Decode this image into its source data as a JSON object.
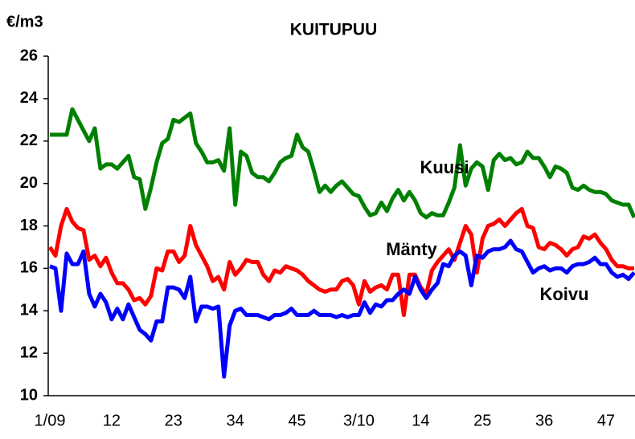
{
  "chart_data": {
    "type": "line",
    "title": "KUITUPUU",
    "y_label": "€/m3",
    "annotations": [
      "Kuusi",
      "Mänty",
      "Koivu"
    ],
    "categories": [
      "1/09",
      null,
      null,
      null,
      null,
      null,
      null,
      null,
      null,
      null,
      null,
      "12",
      null,
      null,
      null,
      null,
      null,
      null,
      null,
      null,
      null,
      null,
      "23",
      null,
      null,
      null,
      null,
      null,
      null,
      null,
      null,
      null,
      null,
      "34",
      null,
      null,
      null,
      null,
      null,
      null,
      null,
      null,
      null,
      null,
      "45",
      null,
      null,
      null,
      null,
      null,
      null,
      null,
      null,
      null,
      null,
      "3/10",
      null,
      null,
      null,
      null,
      null,
      null,
      null,
      null,
      null,
      null,
      "14",
      null,
      null,
      null,
      null,
      null,
      null,
      null,
      null,
      null,
      null,
      "25",
      null,
      null,
      null,
      null,
      null,
      null,
      null,
      null,
      null,
      null,
      "36",
      null,
      null,
      null,
      null,
      null,
      null,
      null,
      null,
      null,
      null,
      "47",
      null,
      null,
      null,
      null,
      null
    ],
    "ylim": [
      10,
      26
    ],
    "yticks": [
      10,
      12,
      14,
      16,
      18,
      20,
      22,
      24,
      26
    ],
    "series": [
      {
        "name": "Kuusi",
        "color": "#008000",
        "values": [
          22.3,
          22.3,
          22.3,
          22.3,
          23.5,
          23.0,
          22.5,
          22.0,
          22.6,
          20.7,
          20.9,
          20.9,
          20.7,
          21.0,
          21.3,
          20.3,
          20.2,
          18.8,
          19.8,
          21.0,
          21.9,
          22.1,
          23.0,
          22.9,
          23.1,
          23.3,
          21.9,
          21.5,
          21.0,
          21.0,
          21.1,
          20.6,
          22.6,
          19.0,
          21.5,
          21.3,
          20.5,
          20.3,
          20.3,
          20.1,
          20.5,
          21.0,
          21.2,
          21.3,
          22.3,
          21.7,
          21.5,
          20.6,
          19.6,
          19.9,
          19.6,
          19.9,
          20.1,
          19.8,
          19.5,
          19.4,
          18.9,
          18.5,
          18.6,
          19.1,
          18.7,
          19.3,
          19.7,
          19.2,
          19.6,
          19.2,
          18.6,
          18.4,
          18.6,
          18.5,
          18.5,
          19.1,
          19.8,
          21.8,
          19.9,
          20.7,
          21.0,
          20.8,
          19.7,
          21.1,
          21.4,
          21.1,
          21.2,
          20.9,
          21.0,
          21.5,
          21.2,
          21.2,
          20.8,
          20.3,
          20.8,
          20.7,
          20.5,
          19.8,
          19.7,
          19.9,
          19.7,
          19.6,
          19.6,
          19.5,
          19.2,
          19.1,
          19.0,
          19.0,
          18.4
        ]
      },
      {
        "name": "Mänty",
        "color": "#ff0000",
        "values": [
          17.0,
          16.6,
          18.0,
          18.8,
          18.2,
          17.9,
          17.8,
          16.4,
          16.6,
          16.1,
          16.5,
          15.8,
          15.3,
          15.3,
          15.0,
          14.5,
          14.6,
          14.3,
          14.7,
          16.0,
          15.9,
          16.8,
          16.8,
          16.3,
          16.6,
          18.0,
          17.1,
          16.6,
          16.1,
          15.4,
          15.6,
          15.0,
          16.3,
          15.7,
          16.0,
          16.4,
          16.3,
          16.3,
          15.7,
          15.4,
          15.9,
          15.8,
          16.1,
          16.0,
          15.9,
          15.7,
          15.4,
          15.2,
          15.0,
          14.9,
          15.0,
          15.0,
          15.4,
          15.5,
          15.2,
          14.3,
          15.4,
          14.9,
          15.1,
          15.2,
          15.0,
          15.7,
          15.7,
          13.8,
          15.7,
          15.7,
          15.1,
          14.8,
          15.9,
          16.3,
          16.6,
          16.9,
          16.4,
          17.2,
          18.0,
          17.6,
          15.8,
          17.4,
          18.0,
          18.1,
          18.3,
          18.0,
          18.3,
          18.6,
          18.8,
          18.0,
          17.9,
          17.0,
          16.9,
          17.2,
          17.1,
          16.9,
          16.6,
          16.9,
          17.0,
          17.5,
          17.4,
          17.6,
          17.2,
          16.9,
          16.4,
          16.1,
          16.1,
          16.0,
          16.0
        ]
      },
      {
        "name": "Koivu",
        "color": "#0000ff",
        "values": [
          16.1,
          16.0,
          14.0,
          16.7,
          16.2,
          16.2,
          16.8,
          14.8,
          14.2,
          14.8,
          14.4,
          13.6,
          14.1,
          13.6,
          14.3,
          13.7,
          13.1,
          12.9,
          12.6,
          13.5,
          13.5,
          15.1,
          15.1,
          15.0,
          14.6,
          15.6,
          13.5,
          14.2,
          14.2,
          14.1,
          14.2,
          10.9,
          13.3,
          14.0,
          14.1,
          13.8,
          13.8,
          13.8,
          13.7,
          13.6,
          13.8,
          13.8,
          13.9,
          14.1,
          13.8,
          13.8,
          13.8,
          14.0,
          13.8,
          13.8,
          13.8,
          13.7,
          13.8,
          13.7,
          13.8,
          13.8,
          14.4,
          13.9,
          14.3,
          14.2,
          14.5,
          14.5,
          14.8,
          15.0,
          14.8,
          15.6,
          15.0,
          14.6,
          15.0,
          15.3,
          16.2,
          16.1,
          16.6,
          16.8,
          16.6,
          15.2,
          16.6,
          16.5,
          16.8,
          16.9,
          16.9,
          17.0,
          17.3,
          16.9,
          16.8,
          16.3,
          15.8,
          16.0,
          16.1,
          15.9,
          16.0,
          16.0,
          15.8,
          16.1,
          16.2,
          16.2,
          16.3,
          16.5,
          16.2,
          16.2,
          15.8,
          15.6,
          15.7,
          15.5,
          15.8
        ]
      }
    ]
  }
}
